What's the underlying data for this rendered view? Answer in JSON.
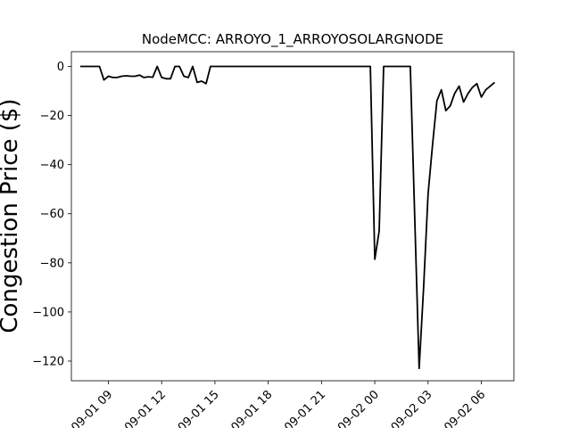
{
  "chart_data": {
    "type": "line",
    "title": "NodeMCC: ARROYO_1_ARROYOSOLARGNODE",
    "xlabel": "",
    "ylabel": "Congestion Price ($)",
    "x_ticks": [
      "09-01 09",
      "09-01 12",
      "09-01 15",
      "09-01 18",
      "09-01 21",
      "09-02 00",
      "09-02 03",
      "09-02 06"
    ],
    "y_ticks": [
      "0",
      "−20",
      "−40",
      "−60",
      "−80",
      "−100",
      "−120"
    ],
    "ylim": [
      -128,
      6
    ],
    "xlim": [
      "2023-09-01 06:55",
      "2023-09-02 07:50"
    ],
    "grid": false,
    "line_color": "#000000",
    "series": [
      {
        "x": [
          "09-01 07:25",
          "09-01 07:50",
          "09-01 08:15",
          "09-01 08:30",
          "09-01 08:45",
          "09-01 09:00",
          "09-01 09:15",
          "09-01 09:30",
          "09-01 09:45",
          "09-01 10:00",
          "09-01 10:15",
          "09-01 10:30",
          "09-01 10:45",
          "09-01 11:00",
          "09-01 11:15",
          "09-01 11:30",
          "09-01 11:45",
          "09-01 12:00",
          "09-01 12:15",
          "09-01 12:30",
          "09-01 12:45",
          "09-01 13:00",
          "09-01 13:15",
          "09-01 13:30",
          "09-01 13:45",
          "09-01 14:00",
          "09-01 14:15",
          "09-01 14:30",
          "09-01 14:45",
          "09-01 15:00",
          "09-01 18:00",
          "09-01 21:00",
          "09-01 23:45",
          "09-02 00:00",
          "09-02 00:15",
          "09-02 00:30",
          "09-02 01:00",
          "09-02 02:00",
          "09-02 02:30",
          "09-02 02:45",
          "09-02 03:00",
          "09-02 03:15",
          "09-02 03:30",
          "09-02 03:45",
          "09-02 04:00",
          "09-02 04:15",
          "09-02 04:30",
          "09-02 04:45",
          "09-02 05:00",
          "09-02 05:15",
          "09-02 05:30",
          "09-02 05:45",
          "09-02 06:00",
          "09-02 06:15",
          "09-02 06:30",
          "09-02 06:45"
        ],
        "y": [
          0,
          0,
          0,
          0,
          -5.5,
          -4,
          -4.5,
          -4.5,
          -4,
          -3.8,
          -4,
          -4,
          -3.5,
          -4.5,
          -4.2,
          -4.4,
          0,
          -4.5,
          -5,
          -5,
          0,
          0,
          -4,
          -4.5,
          0,
          -6.5,
          -6,
          -7,
          0,
          0,
          0,
          0,
          0,
          -78.5,
          -67,
          0,
          0,
          0,
          -123,
          -90,
          -52,
          -32,
          -14,
          -9.5,
          -18,
          -16,
          -11,
          -8,
          -14.5,
          -11,
          -8.5,
          -7,
          -12.5,
          -9.5,
          -8,
          -6.5
        ]
      }
    ]
  }
}
